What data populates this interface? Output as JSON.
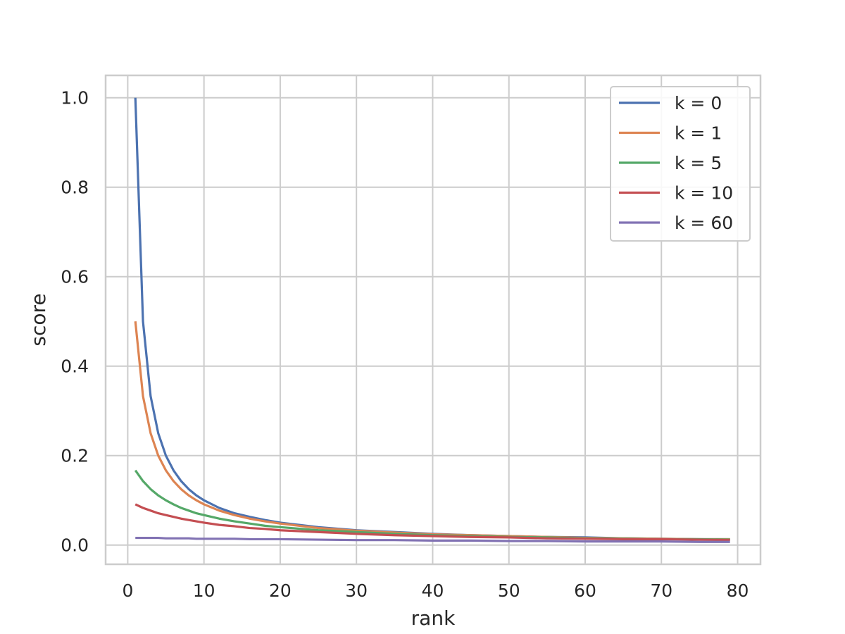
{
  "chart_data": {
    "type": "line",
    "title": "",
    "xlabel": "rank",
    "ylabel": "score",
    "xlim": [
      -2.9,
      83.0
    ],
    "ylim": [
      -0.043,
      1.05
    ],
    "xticks": [
      0,
      10,
      20,
      30,
      40,
      50,
      60,
      70,
      80
    ],
    "yticks": [
      0.0,
      0.2,
      0.4,
      0.6,
      0.8,
      1.0
    ],
    "xtick_labels": [
      "0",
      "10",
      "20",
      "30",
      "40",
      "50",
      "60",
      "70",
      "80"
    ],
    "ytick_labels": [
      "0.0",
      "0.2",
      "0.4",
      "0.6",
      "0.8",
      "1.0"
    ],
    "grid": true,
    "legend_position": "top-right",
    "x": [
      1,
      2,
      3,
      4,
      5,
      6,
      7,
      8,
      9,
      10,
      12,
      14,
      16,
      18,
      20,
      25,
      30,
      35,
      40,
      45,
      50,
      55,
      60,
      65,
      70,
      75,
      79
    ],
    "series": [
      {
        "name": "k = 0",
        "color": "#4c72b0",
        "values": [
          1.0,
          0.5,
          0.333,
          0.25,
          0.2,
          0.167,
          0.143,
          0.125,
          0.111,
          0.1,
          0.083,
          0.071,
          0.063,
          0.056,
          0.05,
          0.04,
          0.033,
          0.029,
          0.025,
          0.022,
          0.02,
          0.018,
          0.017,
          0.015,
          0.014,
          0.013,
          0.013
        ]
      },
      {
        "name": "k = 1",
        "color": "#dd8452",
        "values": [
          0.5,
          0.333,
          0.25,
          0.2,
          0.167,
          0.143,
          0.125,
          0.111,
          0.1,
          0.091,
          0.077,
          0.067,
          0.059,
          0.053,
          0.048,
          0.038,
          0.032,
          0.028,
          0.024,
          0.022,
          0.02,
          0.018,
          0.016,
          0.015,
          0.014,
          0.013,
          0.013
        ]
      },
      {
        "name": "k = 5",
        "color": "#55a868",
        "values": [
          0.167,
          0.143,
          0.125,
          0.111,
          0.1,
          0.091,
          0.083,
          0.077,
          0.071,
          0.067,
          0.059,
          0.053,
          0.048,
          0.043,
          0.04,
          0.033,
          0.029,
          0.025,
          0.022,
          0.02,
          0.018,
          0.017,
          0.015,
          0.014,
          0.013,
          0.013,
          0.012
        ]
      },
      {
        "name": "k = 10",
        "color": "#c44e52",
        "values": [
          0.091,
          0.083,
          0.077,
          0.071,
          0.067,
          0.063,
          0.059,
          0.056,
          0.053,
          0.05,
          0.045,
          0.042,
          0.038,
          0.036,
          0.033,
          0.029,
          0.025,
          0.022,
          0.02,
          0.018,
          0.017,
          0.015,
          0.014,
          0.013,
          0.013,
          0.012,
          0.011
        ]
      },
      {
        "name": "k = 60",
        "color": "#8172b3",
        "values": [
          0.016,
          0.016,
          0.016,
          0.016,
          0.015,
          0.015,
          0.015,
          0.015,
          0.014,
          0.014,
          0.014,
          0.014,
          0.013,
          0.013,
          0.013,
          0.012,
          0.011,
          0.011,
          0.01,
          0.01,
          0.009,
          0.009,
          0.008,
          0.008,
          0.008,
          0.007,
          0.007
        ]
      }
    ]
  }
}
